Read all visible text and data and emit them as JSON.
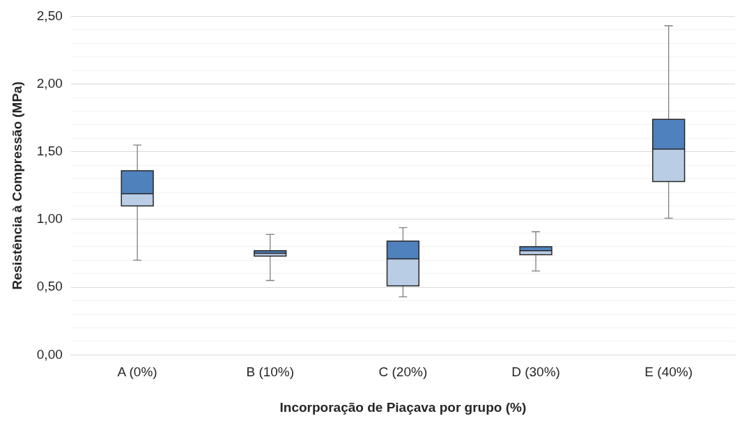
{
  "chart_data": {
    "type": "box",
    "xlabel": "Incorporação de Piaçava por grupo (%)",
    "ylabel": "Resistência à Compressão (MPa)",
    "categories": [
      "A (0%)",
      "B (10%)",
      "C (20%)",
      "D (30%)",
      "E (40%)"
    ],
    "colors": [
      "#4f81bd",
      "#4f81bd",
      "#4f81bd",
      "#4f81bd",
      "#4f81bd"
    ],
    "series": [
      {
        "color": "#b9cde5",
        "boxes": [
          {
            "low": 0.7,
            "q1": 1.1,
            "median": 1.19,
            "q3": 1.36,
            "high": 1.55
          },
          {
            "low": 0.55,
            "q1": 0.73,
            "median": 0.75,
            "q3": 0.77,
            "high": 0.89
          },
          {
            "low": 0.43,
            "q1": 0.51,
            "median": 0.71,
            "q3": 0.84,
            "high": 0.94
          },
          {
            "low": 0.62,
            "q1": 0.74,
            "median": 0.77,
            "q3": 0.8,
            "high": 0.91
          },
          {
            "low": 1.01,
            "q1": 1.28,
            "median": 1.52,
            "q3": 1.74,
            "high": 2.43
          }
        ]
      }
    ],
    "ylim": [
      0,
      2.5
    ],
    "yticks": [
      {
        "value": 0,
        "label": "0,00"
      },
      {
        "value": 0.1,
        "label": null
      },
      {
        "value": 0.2,
        "label": null
      },
      {
        "value": 0.3,
        "label": null
      },
      {
        "value": 0.4,
        "label": null
      },
      {
        "value": 0.5,
        "label": "0,50"
      },
      {
        "value": 0.6,
        "label": null
      },
      {
        "value": 0.7,
        "label": null
      },
      {
        "value": 0.8,
        "label": null
      },
      {
        "value": 0.9,
        "label": null
      },
      {
        "value": 1,
        "label": "1,00"
      },
      {
        "value": 1.1,
        "label": null
      },
      {
        "value": 1.2,
        "label": null
      },
      {
        "value": 1.3,
        "label": null
      },
      {
        "value": 1.4,
        "label": null
      },
      {
        "value": 1.5,
        "label": "1,50"
      },
      {
        "value": 1.6,
        "label": null
      },
      {
        "value": 1.7,
        "label": null
      },
      {
        "value": 1.8,
        "label": null
      },
      {
        "value": 1.9,
        "label": null
      },
      {
        "value": 2,
        "label": "2,00"
      },
      {
        "value": 2.1,
        "label": null
      },
      {
        "value": 2.2,
        "label": null
      },
      {
        "value": 2.3,
        "label": null
      },
      {
        "value": 2.4,
        "label": null
      },
      {
        "value": 2.5,
        "label": "2,50"
      }
    ],
    "grid": "y",
    "legend": false
  }
}
